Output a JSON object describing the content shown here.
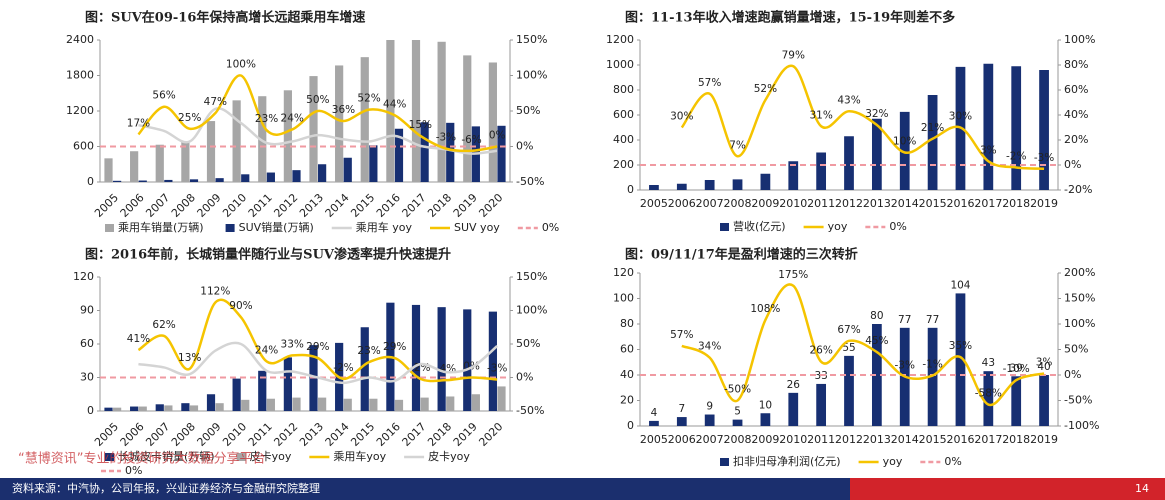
{
  "chart_data": [
    {
      "type": "combo",
      "title": "图：SUV在09-16年保持高增长远超乘用车增速",
      "categories": [
        "2005",
        "2006",
        "2007",
        "2008",
        "2009",
        "2010",
        "2011",
        "2012",
        "2013",
        "2014",
        "2015",
        "2016",
        "2017",
        "2018",
        "2019",
        "2020"
      ],
      "ylim": [
        0,
        2400
      ],
      "yticks": [
        0,
        600,
        1200,
        1800,
        2400
      ],
      "y2lim": [
        -50,
        150
      ],
      "y2ticks": [
        {
          "value": -50,
          "label": "-50%"
        },
        {
          "value": 0,
          "label": "0%"
        },
        {
          "value": 50,
          "label": "50%"
        },
        {
          "value": 100,
          "label": "100%"
        },
        {
          "value": 150,
          "label": "150%"
        }
      ],
      "series": [
        {
          "name": "乘用车销量(万辆)",
          "type": "bar",
          "color": "#a6a6a6",
          "values": [
            400,
            520,
            630,
            680,
            1030,
            1380,
            1450,
            1550,
            1790,
            1970,
            2110,
            2400,
            2400,
            2370,
            2140,
            2020
          ]
        },
        {
          "name": "SUV销量(万辆)",
          "type": "bar",
          "color": "#172f72",
          "values": [
            20,
            25,
            35,
            45,
            65,
            130,
            160,
            200,
            300,
            410,
            620,
            900,
            1010,
            1000,
            940,
            950
          ]
        },
        {
          "name": "乘用车 yoy",
          "type": "line",
          "axis": "y2",
          "color": "#d4d4d4",
          "values": [
            null,
            30,
            22,
            7,
            53,
            33,
            5,
            7,
            16,
            10,
            7,
            15,
            1,
            -4,
            -10,
            -6
          ]
        },
        {
          "name": "SUV yoy",
          "type": "line",
          "axis": "y2",
          "color": "#f5c400",
          "values": [
            null,
            17,
            56,
            25,
            47,
            100,
            23,
            24,
            50,
            36,
            52,
            44,
            15,
            -3,
            -6,
            0
          ],
          "value_labels": [
            null,
            "17%",
            "56%",
            "25%",
            "47%",
            "100%",
            "23%",
            "24%",
            "50%",
            "36%",
            "52%",
            "44%",
            "15%",
            "-3%",
            "-6%",
            "0%"
          ]
        }
      ],
      "ref_line": {
        "name": "0%",
        "value": 0,
        "axis": "y2",
        "color": "#f09aa2"
      }
    },
    {
      "type": "combo",
      "title": "图：11-13年收入增速跑赢销量增速，15-19年则差不多",
      "categories": [
        "2005",
        "2006",
        "2007",
        "2008",
        "2009",
        "2010",
        "2011",
        "2012",
        "2013",
        "2014",
        "2015",
        "2016",
        "2017",
        "2018",
        "2019"
      ],
      "ylim": [
        0,
        1200
      ],
      "yticks": [
        0,
        200,
        400,
        600,
        800,
        1000,
        1200
      ],
      "y2lim": [
        -20,
        100
      ],
      "y2ticks": [
        {
          "value": -20,
          "label": "-20%"
        },
        {
          "value": 0,
          "label": "0%"
        },
        {
          "value": 20,
          "label": "20%"
        },
        {
          "value": 40,
          "label": "40%"
        },
        {
          "value": 60,
          "label": "60%"
        },
        {
          "value": 80,
          "label": "80%"
        },
        {
          "value": 100,
          "label": "100%"
        }
      ],
      "series": [
        {
          "name": "营收(亿元)",
          "type": "bar",
          "color": "#172f72",
          "values": [
            40,
            50,
            80,
            85,
            130,
            230,
            300,
            430,
            570,
            625,
            760,
            985,
            1010,
            990,
            960
          ]
        },
        {
          "name": "yoy",
          "type": "line",
          "axis": "y2",
          "color": "#f5c400",
          "values": [
            null,
            30,
            57,
            7,
            52,
            79,
            31,
            43,
            32,
            10,
            21,
            30,
            3,
            -2,
            -3
          ],
          "value_labels": [
            null,
            "30%",
            "57%",
            "7%",
            "52%",
            "79%",
            "31%",
            "43%",
            "32%",
            "10%",
            "21%",
            "30%",
            "3%",
            "-2%",
            "-3%"
          ]
        }
      ],
      "ref_line": {
        "name": "0%",
        "value": 0,
        "axis": "y2",
        "color": "#f09aa2"
      }
    },
    {
      "type": "combo",
      "title": "图：2016年前，长城销量伴随行业与SUV渗透率提升快速提升",
      "categories": [
        "2005",
        "2006",
        "2007",
        "2008",
        "2009",
        "2010",
        "2011",
        "2012",
        "2013",
        "2014",
        "2015",
        "2016",
        "2017",
        "2018",
        "2019",
        "2020"
      ],
      "ylim": [
        0,
        120
      ],
      "yticks": [
        0,
        30,
        60,
        90,
        120
      ],
      "y2lim": [
        -50,
        150
      ],
      "y2ticks": [
        {
          "value": -50,
          "label": "-50%"
        },
        {
          "value": 0,
          "label": "0%"
        },
        {
          "value": 50,
          "label": "50%"
        },
        {
          "value": 100,
          "label": "100%"
        },
        {
          "value": 150,
          "label": "150%"
        }
      ],
      "series": [
        {
          "name": "长城皮卡销量(万辆)",
          "type": "bar",
          "color": "#172f72",
          "values": [
            3,
            4,
            6,
            7,
            15,
            29,
            36,
            48,
            59,
            61,
            75,
            97,
            95,
            93,
            91,
            89
          ]
        },
        {
          "name": "皮卡yoy",
          "type": "bar",
          "color": "#a6a6a6",
          "values": [
            3,
            4,
            5,
            5,
            7,
            10,
            11,
            12,
            12,
            11,
            11,
            10,
            12,
            13,
            15,
            22
          ]
        },
        {
          "name": "乘用车yoy",
          "type": "line",
          "axis": "y2",
          "color": "#f5c400",
          "values": [
            null,
            41,
            62,
            13,
            112,
            90,
            24,
            33,
            29,
            -2,
            23,
            29,
            -2,
            -4,
            0,
            -3
          ],
          "value_labels": [
            null,
            "41%",
            "62%",
            "13%",
            "112%",
            "90%",
            "24%",
            "33%",
            "29%",
            "-2%",
            "23%",
            "29%",
            "-2%",
            "-4%",
            "0%",
            "-3%"
          ]
        },
        {
          "name": "皮卡yoy",
          "type": "line",
          "axis": "y2",
          "color": "#d4d4d4",
          "values": [
            null,
            20,
            15,
            5,
            40,
            50,
            10,
            9,
            0,
            -8,
            0,
            -5,
            20,
            8,
            15,
            47
          ]
        }
      ],
      "ref_line": {
        "name": "0%",
        "value": 0,
        "axis": "y2",
        "color": "#f09aa2"
      }
    },
    {
      "type": "combo",
      "title": "图：09/11/17年是盈利增速的三次转折",
      "categories": [
        "2005",
        "2006",
        "2007",
        "2008",
        "2009",
        "2010",
        "2011",
        "2012",
        "2013",
        "2014",
        "2015",
        "2016",
        "2017",
        "2018",
        "2019"
      ],
      "ylim": [
        0,
        120
      ],
      "yticks": [
        0,
        20,
        40,
        60,
        80,
        100,
        120
      ],
      "y2lim": [
        -100,
        200
      ],
      "y2ticks": [
        {
          "value": -100,
          "label": "-100%"
        },
        {
          "value": -50,
          "label": "-50%"
        },
        {
          "value": 0,
          "label": "0%"
        },
        {
          "value": 50,
          "label": "50%"
        },
        {
          "value": 100,
          "label": "100%"
        },
        {
          "value": 150,
          "label": "150%"
        },
        {
          "value": 200,
          "label": "200%"
        }
      ],
      "series": [
        {
          "name": "扣非归母净利润(亿元)",
          "type": "bar",
          "color": "#172f72",
          "bar_labels": true,
          "values": [
            4,
            7,
            9,
            5,
            10,
            26,
            33,
            55,
            80,
            77,
            77,
            104,
            43,
            39,
            40
          ]
        },
        {
          "name": "yoy",
          "type": "line",
          "axis": "y2",
          "color": "#f5c400",
          "values": [
            null,
            57,
            34,
            -50,
            108,
            175,
            26,
            67,
            45,
            -3,
            -1,
            35,
            -58,
            -10,
            3
          ],
          "value_labels": [
            null,
            "57%",
            "34%",
            "-50%",
            "108%",
            "175%",
            "26%",
            "67%",
            "45%",
            "-3%",
            "-1%",
            "35%",
            "-58%",
            "-10%",
            "3%"
          ]
        }
      ],
      "ref_line": {
        "name": "0%",
        "value": 0,
        "axis": "y2",
        "color": "#f09aa2"
      }
    }
  ],
  "watermark": "“慧博资讯”专业的投资研究大数据分享平台",
  "footer": {
    "source": "资料来源：中汽协，公司年报，兴业证券经济与金融研究院整理",
    "page": "14"
  }
}
